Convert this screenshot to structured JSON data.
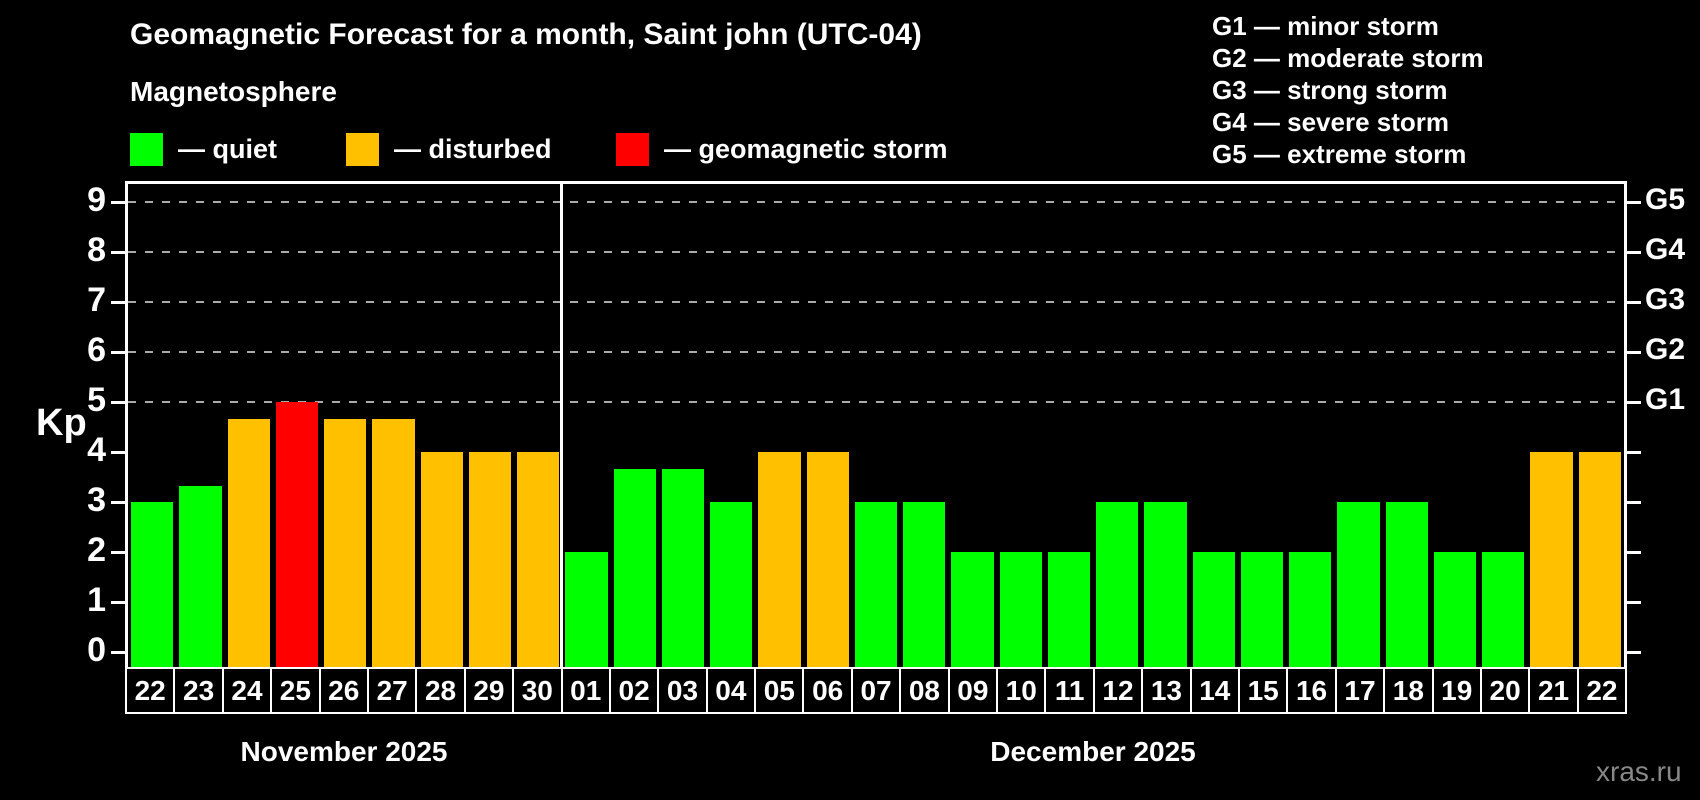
{
  "header": {
    "title": "Geomagnetic Forecast for a month, Saint john (UTC-04)",
    "subtitle": "Magnetosphere"
  },
  "legend": {
    "items": [
      {
        "key": "quiet",
        "label": "— quiet",
        "color": "#00ff00"
      },
      {
        "key": "disturbed",
        "label": "— disturbed",
        "color": "#ffc000"
      },
      {
        "key": "storm",
        "label": "— geomagnetic storm",
        "color": "#ff0000"
      }
    ]
  },
  "g_scale": {
    "lines": [
      "G1 — minor storm",
      "G2 — moderate storm",
      "G3 — strong storm",
      "G4 — severe storm",
      "G5 — extreme storm"
    ]
  },
  "watermark": "xras.ru",
  "chart_data": {
    "type": "bar",
    "title": "Geomagnetic Forecast for a month, Saint john (UTC-04)",
    "subtitle": "Magnetosphere",
    "ylabel": "Kp",
    "xlabel": "",
    "ylim": [
      0,
      9
    ],
    "yticks": [
      0,
      1,
      2,
      3,
      4,
      5,
      6,
      7,
      8,
      9
    ],
    "grid": "dashed horizontal gray lines at Kp 5,6,7,8,9 only",
    "legend_position": "top-left",
    "right_axis": {
      "labels": [
        "G1",
        "G2",
        "G3",
        "G4",
        "G5"
      ],
      "at_kp": [
        5,
        6,
        7,
        8,
        9
      ]
    },
    "months": [
      {
        "label": "November 2025",
        "days": 9
      },
      {
        "label": "December 2025",
        "days": 22
      }
    ],
    "categories": [
      "22",
      "23",
      "24",
      "25",
      "26",
      "27",
      "28",
      "29",
      "30",
      "01",
      "02",
      "03",
      "04",
      "05",
      "06",
      "07",
      "08",
      "09",
      "10",
      "11",
      "12",
      "13",
      "14",
      "15",
      "16",
      "17",
      "18",
      "19",
      "20",
      "21",
      "22"
    ],
    "values": [
      3,
      3.33,
      4.67,
      5,
      4.67,
      4.67,
      4,
      4,
      4,
      2,
      3.67,
      3.67,
      3,
      4,
      4,
      3,
      3,
      2,
      2,
      2,
      3,
      3,
      2,
      2,
      2,
      3,
      3,
      2,
      2,
      4,
      4
    ],
    "statuses": [
      "quiet",
      "quiet",
      "disturbed",
      "storm",
      "disturbed",
      "disturbed",
      "disturbed",
      "disturbed",
      "disturbed",
      "quiet",
      "quiet",
      "quiet",
      "quiet",
      "disturbed",
      "disturbed",
      "quiet",
      "quiet",
      "quiet",
      "quiet",
      "quiet",
      "quiet",
      "quiet",
      "quiet",
      "quiet",
      "quiet",
      "quiet",
      "quiet",
      "quiet",
      "quiet",
      "disturbed",
      "disturbed"
    ],
    "colors": {
      "quiet": "#00ff00",
      "disturbed": "#ffc000",
      "storm": "#ff0000"
    }
  }
}
